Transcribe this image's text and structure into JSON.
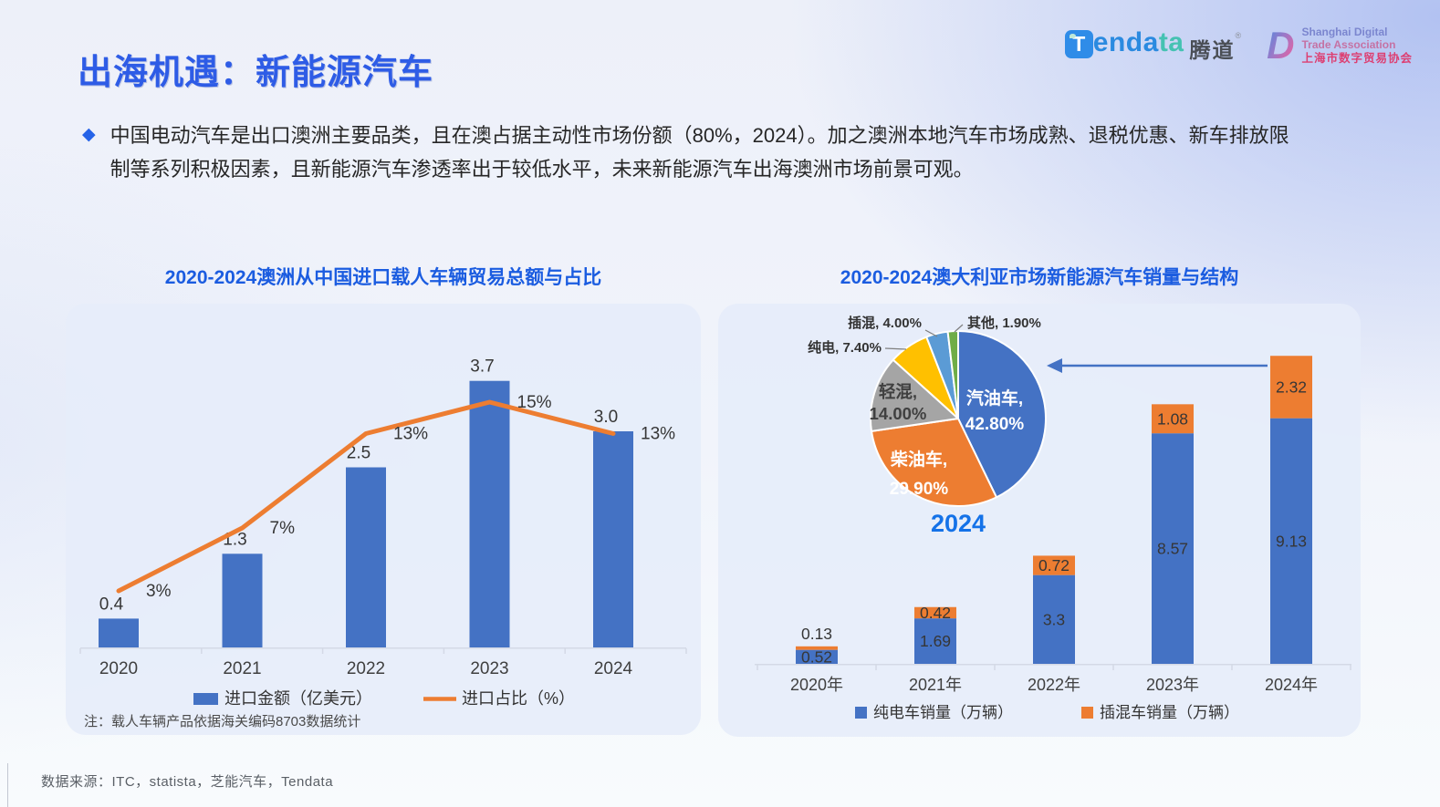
{
  "page": {
    "title": "出海机遇：新能源汽车",
    "bullet_glyph": "◆",
    "body_line1": "中国电动汽车是出口澳洲主要品类，且在澳占据主动性市场份额（80%，2024）。加之澳洲本地汽车市场成熟、退税优惠、新车排放限",
    "body_line2": "制等系列积极因素，且新能源汽车渗透率出于较低水平，未来新能源汽车出海澳洲市场前景可观。",
    "footer_source": "数据来源：ITC，statista，芝能汽车，Tendata"
  },
  "logos": {
    "tendata": {
      "icon_letter": "T",
      "text_blue": "enda",
      "text_teal": "ta",
      "cn": "腾道",
      "reg": "®"
    },
    "sdta": {
      "letter": "D",
      "line1": "Shanghai Digital",
      "line2": "Trade Association",
      "line3": "上海市数字贸易协会"
    }
  },
  "chart_data": [
    {
      "id": "imports_combo",
      "type": "bar",
      "title": "2020-2024澳洲从中国进口载人车辆贸易总额与占比",
      "categories": [
        "2020",
        "2021",
        "2022",
        "2023",
        "2024"
      ],
      "series": [
        {
          "name": "进口金额（亿美元）",
          "chart": "bar",
          "color": "#4472C4",
          "values": [
            0.4,
            1.3,
            2.5,
            3.7,
            3.0
          ],
          "labels": [
            "0.4",
            "1.3",
            "2.5",
            "3.7",
            "3.0"
          ]
        },
        {
          "name": "进口占比（%）",
          "chart": "line",
          "color": "#ED7D31",
          "values": [
            3,
            7,
            13,
            15,
            13
          ],
          "labels": [
            "3%",
            "7%",
            "13%",
            "15%",
            "13%"
          ]
        }
      ],
      "note": "注：载人车辆产品依据海关编码8703数据统计",
      "legend_position": "bottom",
      "grid": false
    },
    {
      "id": "nev_sales_stacked",
      "type": "bar",
      "stacked": true,
      "title": "2020-2024澳大利亚市场新能源汽车销量与结构",
      "categories": [
        "2020年",
        "2021年",
        "2022年",
        "2023年",
        "2024年"
      ],
      "series": [
        {
          "name": "纯电车销量（万辆）",
          "color": "#4472C4",
          "values": [
            0.52,
            1.69,
            3.3,
            8.57,
            9.13
          ],
          "labels": [
            "0.52",
            "1.69",
            "3.3",
            "8.57",
            "9.13"
          ]
        },
        {
          "name": "插混车销量（万辆）",
          "color": "#ED7D31",
          "values": [
            0.13,
            0.42,
            0.72,
            1.08,
            2.32
          ],
          "labels": [
            "0.13",
            "0.42",
            "0.72",
            "1.08",
            "2.32"
          ]
        }
      ],
      "legend_position": "bottom",
      "grid": false
    },
    {
      "id": "fuel_mix_pie",
      "type": "pie",
      "year_label": "2024",
      "slices": [
        {
          "label": "汽油车",
          "value": 42.8,
          "display": "42.80%",
          "color": "#4472C4"
        },
        {
          "label": "柴油车",
          "value": 29.9,
          "display": "29.90%",
          "color": "#ED7D31"
        },
        {
          "label": "轻混",
          "value": 14.0,
          "display": "14.00%",
          "color": "#A5A5A5"
        },
        {
          "label": "纯电",
          "value": 7.4,
          "display": "7.40%",
          "color": "#FFC000"
        },
        {
          "label": "插混",
          "value": 4.0,
          "display": "4.00%",
          "color": "#5B9BD5"
        },
        {
          "label": "其他",
          "value": 1.9,
          "display": "1.90%",
          "color": "#70AD47"
        }
      ]
    }
  ],
  "colors": {
    "accent_blue": "#2E5CE6",
    "bar_blue": "#4472C4",
    "bar_orange": "#ED7D31",
    "pie_year_blue": "#1472E8",
    "label_dark": "#363636"
  }
}
